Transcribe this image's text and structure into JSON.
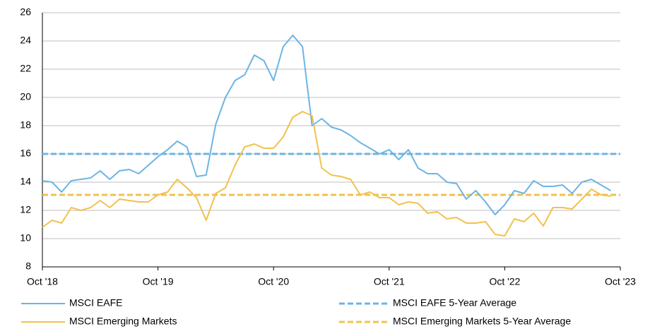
{
  "chart_data": {
    "type": "line",
    "categories": [
      "Oct '18",
      null,
      null,
      null,
      null,
      null,
      null,
      null,
      null,
      null,
      null,
      null,
      "Oct '19",
      null,
      null,
      null,
      null,
      null,
      null,
      null,
      null,
      null,
      null,
      null,
      "Oct '20",
      null,
      null,
      null,
      null,
      null,
      null,
      null,
      null,
      null,
      null,
      null,
      "Oct '21",
      null,
      null,
      null,
      null,
      null,
      null,
      null,
      null,
      null,
      null,
      null,
      "Oct '22",
      null,
      null,
      null,
      null,
      null,
      null,
      null,
      null,
      null,
      null,
      null,
      "Oct '23"
    ],
    "series": [
      {
        "name": "MSCI EAFE",
        "color": "#6cb4e4",
        "values": [
          14.1,
          14.0,
          13.3,
          14.1,
          14.2,
          14.3,
          14.8,
          14.2,
          14.8,
          14.9,
          14.6,
          15.2,
          15.8,
          16.3,
          16.9,
          16.5,
          14.4,
          14.5,
          18.1,
          20.0,
          21.2,
          21.6,
          23.0,
          22.6,
          21.2,
          23.6,
          24.4,
          23.6,
          18.0,
          18.5,
          17.9,
          17.7,
          17.3,
          16.8,
          16.4,
          16.0,
          16.3,
          15.6,
          16.3,
          15.0,
          14.6,
          14.6,
          14.0,
          13.9,
          12.8,
          13.4,
          12.6,
          11.7,
          12.4,
          13.4,
          13.2,
          14.1,
          13.7,
          13.7,
          13.8,
          13.2,
          14.0,
          14.2,
          13.8,
          13.4,
          null
        ]
      },
      {
        "name": "MSCI Emerging Markets",
        "color": "#f2c14e",
        "values": [
          10.8,
          11.3,
          11.1,
          12.2,
          12.0,
          12.2,
          12.7,
          12.2,
          12.8,
          12.7,
          12.6,
          12.6,
          13.1,
          13.3,
          14.2,
          13.6,
          12.9,
          11.3,
          13.2,
          13.6,
          15.2,
          16.5,
          16.7,
          16.4,
          16.4,
          17.2,
          18.6,
          19.0,
          18.7,
          15.0,
          14.5,
          14.4,
          14.2,
          13.1,
          13.3,
          12.9,
          12.9,
          12.4,
          12.6,
          12.5,
          11.8,
          11.9,
          11.4,
          11.5,
          11.1,
          11.1,
          11.2,
          10.3,
          10.2,
          11.4,
          11.2,
          11.8,
          10.9,
          12.2,
          12.2,
          12.1,
          12.8,
          13.5,
          13.1,
          13.0,
          null
        ]
      }
    ],
    "reference_lines": [
      {
        "name": "MSCI EAFE 5-Year Average",
        "color": "#6cb4e4",
        "value": 16.0
      },
      {
        "name": "MSCI Emerging Markets 5-Year Average",
        "color": "#f2c14e",
        "value": 13.1
      }
    ],
    "ylim": [
      8,
      26
    ],
    "yticks": [
      8,
      10,
      12,
      14,
      16,
      18,
      20,
      22,
      24,
      26
    ],
    "grid": true
  }
}
